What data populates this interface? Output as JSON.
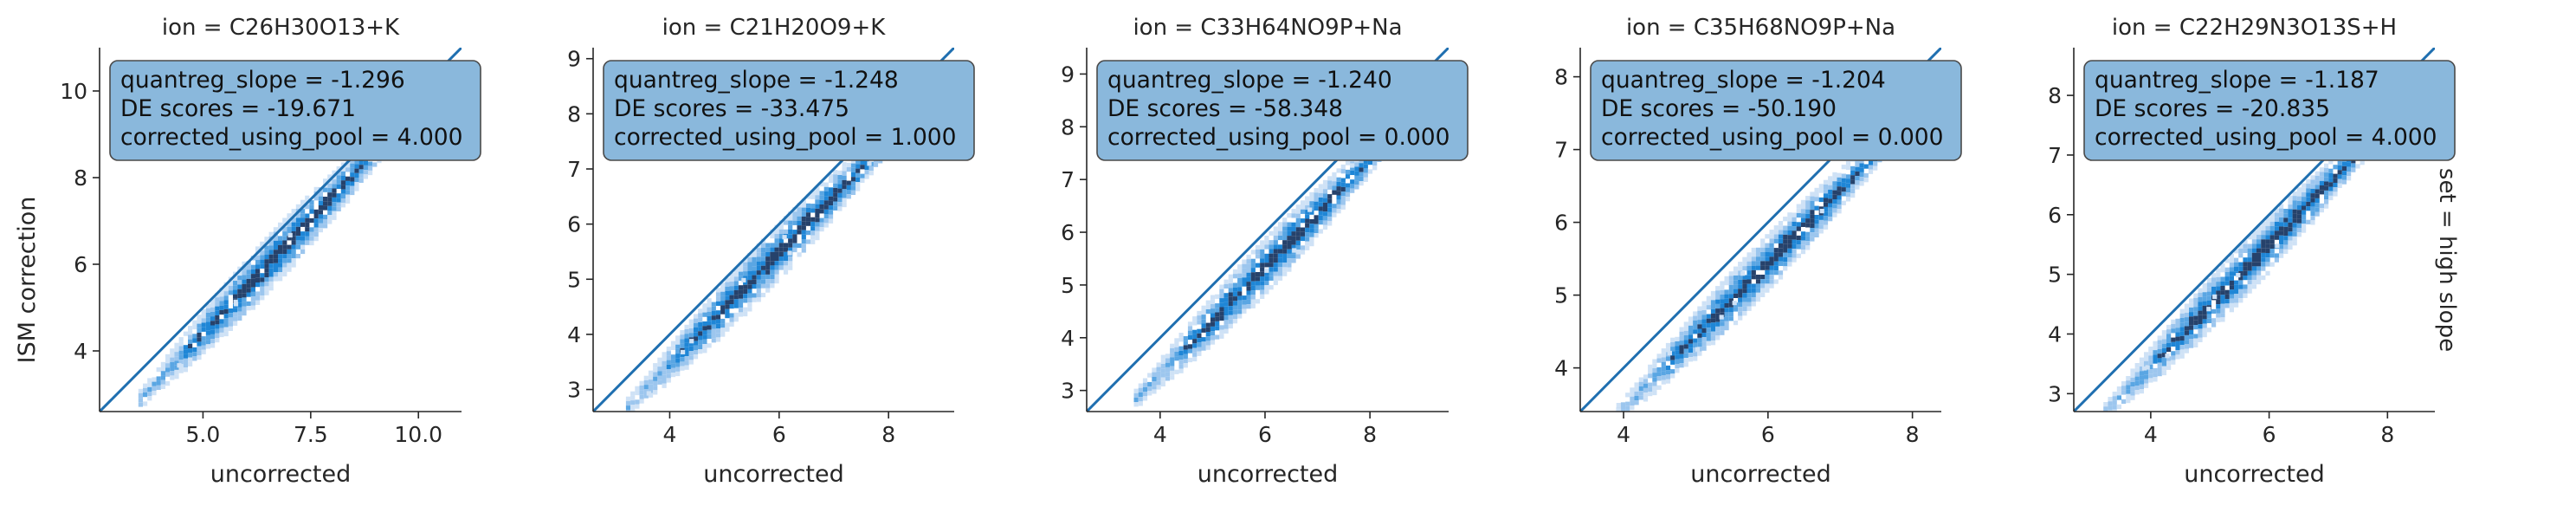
{
  "figure": {
    "row_label": "set = high slope",
    "ylabel": "ISM correction"
  },
  "colors": {
    "accent": "#1f6fb0",
    "annotation_fill": "#8ab8dc",
    "annotation_border": "#4a4a4a",
    "hex_palette": [
      "#cfe2f6",
      "#9cc6ee",
      "#5aa6e3",
      "#1f86d6",
      "#26426b"
    ]
  },
  "chart_data": [
    {
      "type": "hexbin",
      "title": "ion = C26H30O13+K",
      "xlabel": "uncorrected",
      "ylabel": "ISM correction",
      "xlim": [
        2.6,
        11.0
      ],
      "ylim": [
        2.6,
        11.0
      ],
      "xticks": [
        5.0,
        7.5,
        10.0
      ],
      "xtick_labels": [
        "5.0",
        "7.5",
        "10.0"
      ],
      "yticks": [
        4,
        6,
        8,
        10
      ],
      "ytick_labels": [
        "4",
        "6",
        "8",
        "10"
      ],
      "identity_line": true,
      "annotation": [
        "quantreg_slope = -1.296",
        "DE scores = -19.671",
        "corrected_using_pool = 4.000"
      ],
      "fit": {
        "x_range": [
          3.5,
          10.2
        ],
        "intercept": -0.75,
        "slope": 1.05
      }
    },
    {
      "type": "hexbin",
      "title": "ion = C21H20O9+K",
      "xlabel": "uncorrected",
      "ylabel": "",
      "xlim": [
        2.6,
        9.2
      ],
      "ylim": [
        2.6,
        9.2
      ],
      "xticks": [
        4,
        6,
        8
      ],
      "xtick_labels": [
        "4",
        "6",
        "8"
      ],
      "yticks": [
        3,
        4,
        5,
        6,
        7,
        8,
        9
      ],
      "ytick_labels": [
        "3",
        "4",
        "5",
        "6",
        "7",
        "8",
        "9"
      ],
      "identity_line": true,
      "annotation": [
        "quantreg_slope = -1.248",
        "DE scores = -33.475",
        "corrected_using_pool = 1.000"
      ],
      "fit": {
        "x_range": [
          3.2,
          8.8
        ],
        "intercept": -0.55,
        "slope": 1.02
      }
    },
    {
      "type": "hexbin",
      "title": "ion = C33H64NO9P+Na",
      "xlabel": "uncorrected",
      "ylabel": "",
      "xlim": [
        2.6,
        9.5
      ],
      "ylim": [
        2.6,
        9.5
      ],
      "xticks": [
        4,
        6,
        8
      ],
      "xtick_labels": [
        "4",
        "6",
        "8"
      ],
      "yticks": [
        3,
        4,
        5,
        6,
        7,
        8,
        9
      ],
      "ytick_labels": [
        "3",
        "4",
        "5",
        "6",
        "7",
        "8",
        "9"
      ],
      "identity_line": true,
      "annotation": [
        "quantreg_slope = -1.240",
        "DE scores = -58.348",
        "corrected_using_pool = 0.000"
      ],
      "fit": {
        "x_range": [
          3.5,
          9.0
        ],
        "intercept": -0.7,
        "slope": 1.02
      }
    },
    {
      "type": "hexbin",
      "title": "ion = C35H68NO9P+Na",
      "xlabel": "uncorrected",
      "ylabel": "",
      "xlim": [
        3.4,
        8.4
      ],
      "ylim": [
        3.4,
        8.4
      ],
      "xticks": [
        4,
        6,
        8
      ],
      "xtick_labels": [
        "4",
        "6",
        "8"
      ],
      "yticks": [
        4,
        5,
        6,
        7,
        8
      ],
      "ytick_labels": [
        "4",
        "5",
        "6",
        "7",
        "8"
      ],
      "identity_line": true,
      "annotation": [
        "quantreg_slope = -1.204",
        "DE scores = -50.190",
        "corrected_using_pool = 0.000"
      ],
      "fit": {
        "x_range": [
          3.9,
          8.2
        ],
        "intercept": -0.5,
        "slope": 1.0
      }
    },
    {
      "type": "hexbin",
      "title": "ion = C22H29N3O13S+H",
      "xlabel": "uncorrected",
      "ylabel": "",
      "xlim": [
        2.7,
        8.8
      ],
      "ylim": [
        2.7,
        8.8
      ],
      "xticks": [
        4,
        6,
        8
      ],
      "xtick_labels": [
        "4",
        "6",
        "8"
      ],
      "yticks": [
        3,
        4,
        5,
        6,
        7,
        8
      ],
      "ytick_labels": [
        "3",
        "4",
        "5",
        "6",
        "7",
        "8"
      ],
      "identity_line": true,
      "annotation": [
        "quantreg_slope = -1.187",
        "DE scores = -20.835",
        "corrected_using_pool = 4.000"
      ],
      "fit": {
        "x_range": [
          3.2,
          8.4
        ],
        "intercept": -0.55,
        "slope": 1.02
      }
    }
  ]
}
